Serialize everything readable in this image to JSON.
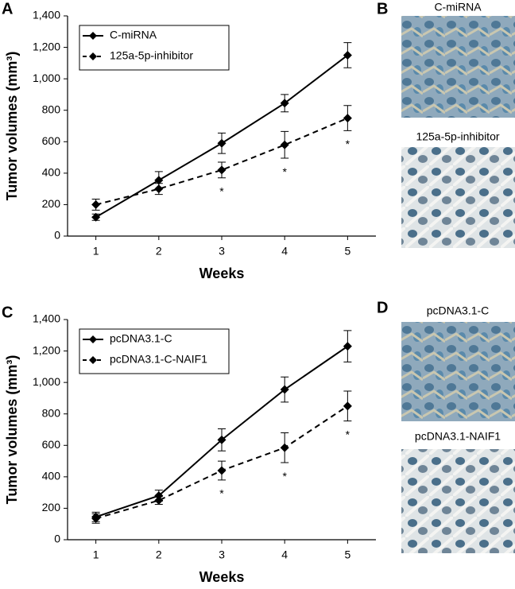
{
  "chart_data": [
    {
      "type": "line",
      "panel": "A",
      "xlabel": "Weeks",
      "ylabel": "Tumor volumes (mm³)",
      "x": [
        1,
        2,
        3,
        4,
        5
      ],
      "xlim": [
        0.55,
        5.45
      ],
      "xticks": [
        1,
        2,
        3,
        4,
        5
      ],
      "ylim": [
        0,
        1400
      ],
      "yticks": [
        0,
        200,
        400,
        600,
        800,
        {
          "value": 1000,
          "label": "1,000"
        },
        {
          "value": 1200,
          "label": "1,200"
        },
        {
          "value": 1400,
          "label": "1,400"
        }
      ],
      "legend": "upper left",
      "series": [
        {
          "name": "C-miRNA",
          "color": "#000000",
          "dashed": false,
          "values": [
            120,
            355,
            590,
            845,
            1150
          ],
          "errors": [
            20,
            55,
            65,
            55,
            80
          ]
        },
        {
          "name": "125a-5p-inhibitor",
          "color": "#000000",
          "dashed": true,
          "values": [
            200,
            300,
            420,
            580,
            750
          ],
          "errors": [
            35,
            35,
            50,
            85,
            80
          ]
        }
      ],
      "annotations": [
        {
          "x": 3,
          "text": "*"
        },
        {
          "x": 4,
          "text": "*"
        },
        {
          "x": 5,
          "text": "*"
        }
      ]
    },
    {
      "type": "line",
      "panel": "C",
      "xlabel": "Weeks",
      "ylabel": "Tumor volumes (mm³)",
      "x": [
        1,
        2,
        3,
        4,
        5
      ],
      "xlim": [
        0.55,
        5.45
      ],
      "xticks": [
        1,
        2,
        3,
        4,
        5
      ],
      "ylim": [
        0,
        1400
      ],
      "yticks": [
        0,
        200,
        400,
        600,
        800,
        {
          "value": 1000,
          "label": "1,000"
        },
        {
          "value": 1200,
          "label": "1,200"
        },
        {
          "value": 1400,
          "label": "1,400"
        }
      ],
      "legend": "upper left",
      "series": [
        {
          "name": "pcDNA3.1-C",
          "color": "#000000",
          "dashed": false,
          "values": [
            145,
            280,
            635,
            955,
            1230
          ],
          "errors": [
            30,
            35,
            70,
            80,
            100
          ]
        },
        {
          "name": "pcDNA3.1-C-NAIF1",
          "color": "#000000",
          "dashed": true,
          "values": [
            135,
            250,
            440,
            585,
            850
          ],
          "errors": [
            30,
            25,
            60,
            95,
            95
          ]
        }
      ],
      "annotations": [
        {
          "x": 3,
          "text": "*"
        },
        {
          "x": 4,
          "text": "*"
        },
        {
          "x": 5,
          "text": "*"
        }
      ]
    }
  ],
  "images": [
    {
      "panel": "B",
      "captions": [
        "C-miRNA",
        "125a-5p-inhibitor"
      ]
    },
    {
      "panel": "D",
      "captions": [
        "pcDNA3.1-C",
        "pcDNA3.1-NAIF1"
      ]
    }
  ]
}
